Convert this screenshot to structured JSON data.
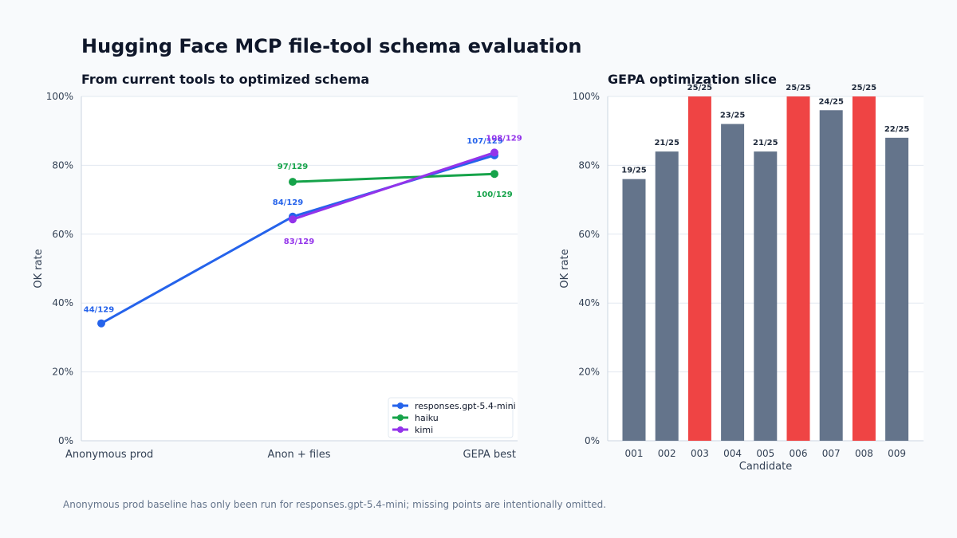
{
  "title": "Hugging Face MCP file-tool schema evaluation",
  "caption": "Anonymous prod baseline has only been run for responses.gpt-5.4-mini; missing points are intentionally omitted.",
  "chart_data": [
    {
      "type": "line",
      "title": "From current tools to optimized schema",
      "xlabel": "",
      "ylabel": "OK rate",
      "categories": [
        "Anonymous prod",
        "Anon + files",
        "GEPA best"
      ],
      "ylim": [
        0,
        100
      ],
      "yticks": [
        "0%",
        "20%",
        "40%",
        "60%",
        "80%",
        "100%"
      ],
      "grid": true,
      "legend_position": "bottom-right",
      "series": [
        {
          "name": "responses.gpt-5.4-mini",
          "color": "#2563eb",
          "points": [
            {
              "x": "Anonymous prod",
              "y": 34.1,
              "label": "44/129"
            },
            {
              "x": "Anon + files",
              "y": 65.1,
              "label": "84/129"
            },
            {
              "x": "GEPA best",
              "y": 82.9,
              "label": "107/129"
            }
          ]
        },
        {
          "name": "haiku",
          "color": "#16a34a",
          "points": [
            {
              "x": "Anon + files",
              "y": 75.2,
              "label": "97/129"
            },
            {
              "x": "GEPA best",
              "y": 77.5,
              "label": "100/129"
            }
          ]
        },
        {
          "name": "kimi",
          "color": "#9333ea",
          "points": [
            {
              "x": "Anon + files",
              "y": 64.3,
              "label": "83/129"
            },
            {
              "x": "GEPA best",
              "y": 83.7,
              "label": "108/129"
            }
          ]
        }
      ]
    },
    {
      "type": "bar",
      "title": "GEPA optimization slice",
      "xlabel": "Candidate",
      "ylabel": "OK rate",
      "ylim": [
        0,
        100
      ],
      "yticks": [
        "0%",
        "20%",
        "40%",
        "60%",
        "80%",
        "100%"
      ],
      "grid": true,
      "categories": [
        "001",
        "002",
        "003",
        "004",
        "005",
        "006",
        "007",
        "008",
        "009"
      ],
      "values": [
        76,
        84,
        100,
        92,
        84,
        100,
        96,
        100,
        88
      ],
      "labels": [
        "19/25",
        "21/25",
        "25/25",
        "23/25",
        "21/25",
        "25/25",
        "24/25",
        "25/25",
        "22/25"
      ],
      "highlight": [
        false,
        false,
        true,
        false,
        false,
        true,
        false,
        true,
        false
      ],
      "colors": {
        "normal": "#64748b",
        "highlight": "#ef4444"
      }
    }
  ]
}
